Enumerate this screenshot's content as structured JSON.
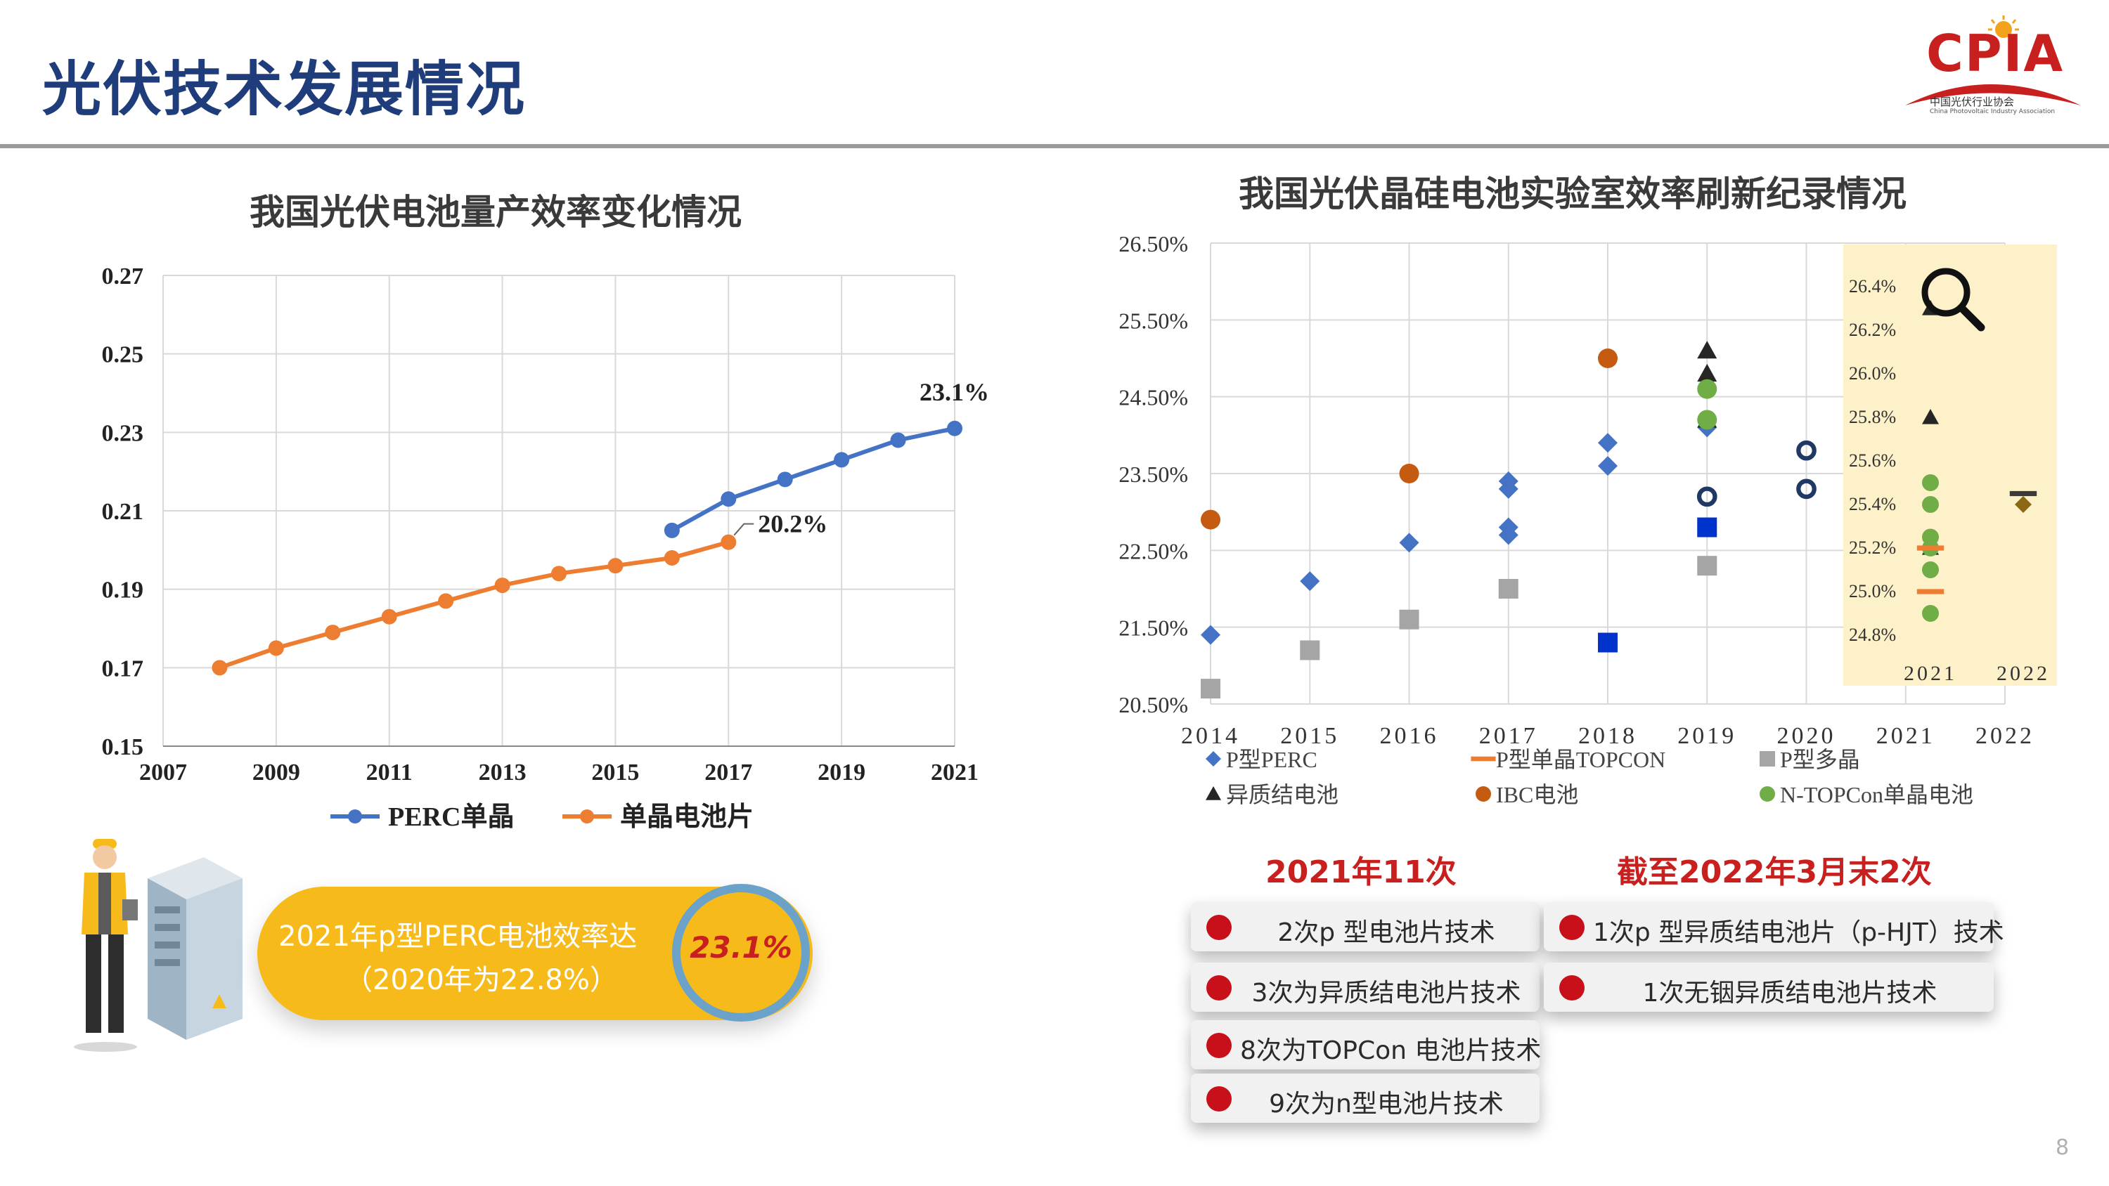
{
  "page": {
    "title": "光伏技术发展情况",
    "page_number": "8",
    "logo": {
      "text": "CPIA",
      "subtitle": "中国光伏行业协会",
      "subtitle_en": "China Photovoltaic Industry Association"
    }
  },
  "left_chart": {
    "title": "我国光伏电池量产效率变化情况"
  },
  "right_chart": {
    "title": "我国光伏晶硅电池实验室效率刷新纪录情况"
  },
  "chart_data": [
    {
      "type": "line",
      "title": "我国光伏电池量产效率变化情况",
      "xlim": [
        2007,
        2021
      ],
      "ylim": [
        0.15,
        0.27
      ],
      "x_ticks": [
        "2007",
        "2009",
        "2011",
        "2013",
        "2015",
        "2017",
        "2019",
        "2021"
      ],
      "y_ticks": [
        "0.27",
        "0.25",
        "0.23",
        "0.21",
        "0.19",
        "0.17",
        "0.15"
      ],
      "grid": true,
      "legend_position": "bottom",
      "series": [
        {
          "name": "PERC单晶",
          "color": "#4472c4",
          "x": [
            2016,
            2017,
            2018,
            2019,
            2020,
            2021
          ],
          "y": [
            0.205,
            0.213,
            0.218,
            0.223,
            0.228,
            0.231
          ]
        },
        {
          "name": "单晶电池片",
          "color": "#ed7d31",
          "x": [
            2008,
            2009,
            2010,
            2011,
            2012,
            2013,
            2014,
            2015,
            2016,
            2017
          ],
          "y": [
            0.17,
            0.175,
            0.179,
            0.183,
            0.187,
            0.191,
            0.194,
            0.196,
            0.198,
            0.202
          ]
        }
      ],
      "annotations": [
        {
          "text": "23.1%",
          "x": 2021,
          "y": 0.231
        },
        {
          "text": "20.2%",
          "x": 2017,
          "y": 0.202
        }
      ]
    },
    {
      "type": "scatter",
      "title": "我国光伏晶硅电池实验室效率刷新纪录情况",
      "x_ticks": [
        "2014",
        "2015",
        "2016",
        "2017",
        "2018",
        "2019",
        "2020",
        "2021",
        "2022"
      ],
      "xlim": [
        2014,
        2022
      ],
      "y_ticks": [
        "26.50%",
        "25.50%",
        "24.50%",
        "23.50%",
        "22.50%",
        "21.50%",
        "20.50%"
      ],
      "ylim": [
        20.5,
        26.5
      ],
      "grid": true,
      "legend_position": "bottom",
      "series": [
        {
          "name": "P型PERC",
          "marker": "diamond",
          "color": "#4472c4",
          "points": [
            [
              2014,
              21.4
            ],
            [
              2015,
              22.1
            ],
            [
              2016,
              22.6
            ],
            [
              2017,
              23.4
            ],
            [
              2017,
              23.3
            ],
            [
              2017,
              22.8
            ],
            [
              2017,
              22.7
            ],
            [
              2018,
              23.9
            ],
            [
              2018,
              23.6
            ],
            [
              2019,
              24.1
            ]
          ]
        },
        {
          "name": "P型单晶TOPCON",
          "marker": "dash",
          "color": "#ed7d31",
          "points": []
        },
        {
          "name": "P型多晶",
          "marker": "square",
          "color": "#a5a5a5",
          "points": [
            [
              2014,
              20.7
            ],
            [
              2015,
              21.2
            ],
            [
              2016,
              21.6
            ],
            [
              2017,
              22.0
            ],
            [
              2019,
              22.3
            ]
          ]
        },
        {
          "name": "异质结电池",
          "marker": "triangle",
          "color": "#262626",
          "points": [
            [
              2019,
              25.1
            ],
            [
              2019,
              24.8
            ],
            [
              2019,
              24.2
            ]
          ]
        },
        {
          "name": "IBC电池",
          "marker": "circle",
          "color": "#c55a11",
          "points": [
            [
              2014,
              22.9
            ],
            [
              2016,
              23.5
            ],
            [
              2018,
              25.0
            ]
          ]
        },
        {
          "name": "N-TOPCon单晶电池",
          "marker": "circle",
          "color": "#70ad47",
          "points": [
            [
              2019,
              24.6
            ],
            [
              2019,
              24.2
            ]
          ]
        },
        {
          "name": "",
          "marker": "square",
          "color": "#0033cc",
          "points": [
            [
              2018,
              21.3
            ],
            [
              2019,
              22.8
            ]
          ]
        },
        {
          "name": "",
          "marker": "ring",
          "color": "#1f3864",
          "points": [
            [
              2019,
              23.2
            ],
            [
              2020,
              23.8
            ],
            [
              2020,
              23.3
            ]
          ]
        }
      ],
      "inset": {
        "x_ticks": [
          "2021",
          "2022"
        ],
        "y_ticks": [
          "26.4%",
          "26.2%",
          "26.0%",
          "25.8%",
          "25.6%",
          "25.4%",
          "25.2%",
          "25.0%",
          "24.8%"
        ],
        "ylim": [
          24.8,
          26.4
        ],
        "series": [
          {
            "name": "异质结电池",
            "marker": "triangle",
            "color": "#262626",
            "points": [
              [
                2021,
                26.3
              ],
              [
                2021,
                25.8
              ],
              [
                2021,
                25.2
              ]
            ]
          },
          {
            "name": "N-TOPCon单晶电池",
            "marker": "circle",
            "color": "#70ad47",
            "points": [
              [
                2021,
                25.5
              ],
              [
                2021,
                25.4
              ],
              [
                2021,
                25.25
              ],
              [
                2021,
                25.2
              ],
              [
                2021,
                25.1
              ],
              [
                2021,
                24.9
              ]
            ]
          },
          {
            "name": "P型单晶TOPCON",
            "marker": "dash",
            "color": "#ed7d31",
            "points": [
              [
                2021,
                25.2
              ],
              [
                2021,
                25.0
              ]
            ]
          },
          {
            "name": "",
            "marker": "dash",
            "color": "#3a3a3a",
            "points": [
              [
                2022,
                25.45
              ]
            ]
          },
          {
            "name": "",
            "marker": "diamond",
            "color": "#8b6914",
            "points": [
              [
                2022,
                25.4
              ]
            ]
          }
        ]
      }
    }
  ],
  "highlight": {
    "line1": "2021年p型PERC电池效率达",
    "line2": "（2020年为22.8%）",
    "value": "23.1%"
  },
  "records": {
    "left_heading": "2021年11次",
    "right_heading": "截至2022年3月末2次",
    "left_items": [
      "2次p 型电池片技术",
      "3次为异质结电池片技术",
      "8次为TOPCon 电池片技术",
      "9次为n型电池片技术"
    ],
    "right_items": [
      "1次p 型异质结电池片（p-HJT）技术",
      "1次无铟异质结电池片技术"
    ]
  },
  "colors": {
    "title": "#1f3d7a",
    "perc": "#4472c4",
    "mono": "#ed7d31",
    "accent_red": "#c8201e",
    "pill": "#f6bb1b",
    "inset_bg": "#fdf1c9"
  }
}
